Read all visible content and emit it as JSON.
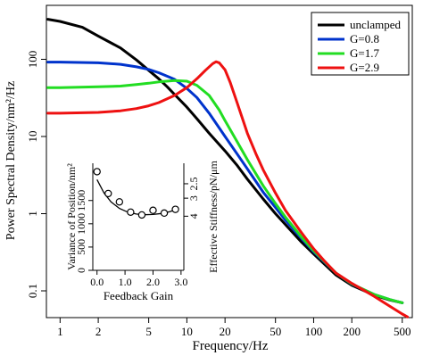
{
  "chart_data": [
    {
      "type": "line",
      "xlabel": "Frequency/Hz",
      "ylabel": "Power Spectral Density/nm²/Hz",
      "xscale": "log",
      "yscale": "log",
      "xlim": [
        0.78,
        600
      ],
      "ylim": [
        0.045,
        500
      ],
      "x_ticks": [
        1,
        2,
        5,
        10,
        20,
        50,
        100,
        200,
        500
      ],
      "x_tick_labels": [
        "1",
        "2",
        "5",
        "10",
        "20",
        "50",
        "100",
        "200",
        "500"
      ],
      "y_ticks": [
        0.1,
        1,
        10,
        100
      ],
      "y_tick_labels": [
        "0.1",
        "1",
        "10",
        "100"
      ],
      "legend_position": "top-right",
      "series": [
        {
          "name": "unclamped",
          "color": "#000000",
          "points": [
            [
              0.8,
              330
            ],
            [
              1,
              310
            ],
            [
              1.5,
              260
            ],
            [
              2,
              200
            ],
            [
              3,
              140
            ],
            [
              4,
              98
            ],
            [
              5,
              72
            ],
            [
              6,
              56
            ],
            [
              7,
              44
            ],
            [
              8,
              35
            ],
            [
              10,
              24
            ],
            [
              12,
              17
            ],
            [
              15,
              11
            ],
            [
              20,
              6.5
            ],
            [
              25,
              4.2
            ],
            [
              30,
              2.8
            ],
            [
              40,
              1.55
            ],
            [
              50,
              1.0
            ],
            [
              60,
              0.72
            ],
            [
              80,
              0.43
            ],
            [
              100,
              0.3
            ],
            [
              150,
              0.16
            ],
            [
              200,
              0.118
            ],
            [
              300,
              0.088
            ],
            [
              400,
              0.076
            ],
            [
              500,
              0.07
            ]
          ]
        },
        {
          "name": "G=0.8",
          "color": "#0033cc",
          "points": [
            [
              0.8,
              92
            ],
            [
              1,
              92
            ],
            [
              2,
              90
            ],
            [
              3,
              86
            ],
            [
              4,
              80
            ],
            [
              5,
              74
            ],
            [
              6,
              67
            ],
            [
              8,
              55
            ],
            [
              10,
              42
            ],
            [
              12,
              32
            ],
            [
              15,
              20
            ],
            [
              20,
              10
            ],
            [
              25,
              5.9
            ],
            [
              30,
              3.8
            ],
            [
              40,
              1.9
            ],
            [
              50,
              1.2
            ],
            [
              60,
              0.82
            ],
            [
              80,
              0.48
            ],
            [
              100,
              0.32
            ],
            [
              150,
              0.17
            ],
            [
              200,
              0.122
            ],
            [
              300,
              0.09
            ],
            [
              400,
              0.077
            ],
            [
              500,
              0.07
            ]
          ]
        },
        {
          "name": "G=1.7",
          "color": "#22dd22",
          "points": [
            [
              0.8,
              43
            ],
            [
              1,
              43
            ],
            [
              2,
              44
            ],
            [
              3,
              45
            ],
            [
              4,
              47
            ],
            [
              5,
              49
            ],
            [
              6,
              51
            ],
            [
              8,
              53
            ],
            [
              10,
              52
            ],
            [
              12,
              46
            ],
            [
              15,
              34
            ],
            [
              18,
              22
            ],
            [
              20,
              16
            ],
            [
              25,
              8.5
            ],
            [
              30,
              5
            ],
            [
              40,
              2.3
            ],
            [
              50,
              1.35
            ],
            [
              60,
              0.9
            ],
            [
              80,
              0.5
            ],
            [
              100,
              0.33
            ],
            [
              150,
              0.17
            ],
            [
              200,
              0.123
            ],
            [
              300,
              0.09
            ],
            [
              400,
              0.077
            ],
            [
              500,
              0.07
            ]
          ]
        },
        {
          "name": "G=2.9",
          "color": "#ee1111",
          "points": [
            [
              0.8,
              20
            ],
            [
              1,
              20
            ],
            [
              2,
              20.5
            ],
            [
              3,
              21.5
            ],
            [
              4,
              23
            ],
            [
              5,
              25
            ],
            [
              6,
              27.5
            ],
            [
              8,
              34
            ],
            [
              10,
              43
            ],
            [
              12,
              56
            ],
            [
              14,
              72
            ],
            [
              16,
              88
            ],
            [
              17,
              93
            ],
            [
              18,
              90
            ],
            [
              20,
              73
            ],
            [
              22,
              50
            ],
            [
              25,
              27
            ],
            [
              28,
              15.5
            ],
            [
              30,
              11
            ],
            [
              35,
              6
            ],
            [
              40,
              3.7
            ],
            [
              50,
              1.85
            ],
            [
              60,
              1.1
            ],
            [
              80,
              0.57
            ],
            [
              100,
              0.35
            ],
            [
              120,
              0.25
            ],
            [
              150,
              0.17
            ],
            [
              200,
              0.125
            ],
            [
              250,
              0.101
            ],
            [
              300,
              0.085
            ],
            [
              400,
              0.063
            ],
            [
              500,
              0.05
            ],
            [
              550,
              0.046
            ]
          ]
        }
      ]
    },
    {
      "type": "scatter",
      "xlabel": "Feedback Gain",
      "ylabel": "Variance of Position/nm²",
      "y2label": "Effective Stiffness/pN/μm",
      "xlim": [
        -0.15,
        3.1
      ],
      "ylim": [
        0,
        2300
      ],
      "x_ticks": [
        0,
        1,
        2,
        3
      ],
      "x_tick_labels": [
        "0.0",
        "1.0",
        "2.0",
        "3.0"
      ],
      "y_ticks": [
        0,
        500,
        1000,
        1500
      ],
      "y_tick_labels": [
        "0",
        "500",
        "1000",
        "1500"
      ],
      "y2_ticks": [
        4,
        3,
        2.5
      ],
      "y2_tick_labels": [
        "4",
        "3",
        "2.5"
      ],
      "markers": {
        "x": [
          0,
          0.4,
          0.8,
          1.2,
          1.6,
          2.0,
          2.4,
          2.8
        ],
        "y": [
          2120,
          1650,
          1470,
          1250,
          1190,
          1290,
          1230,
          1310
        ]
      },
      "fit": {
        "x": [
          0,
          0.25,
          0.5,
          0.8,
          1.1,
          1.4,
          1.7,
          2.0,
          2.3,
          2.6,
          2.9
        ],
        "y": [
          1950,
          1660,
          1470,
          1330,
          1250,
          1210,
          1195,
          1200,
          1220,
          1260,
          1320
        ]
      }
    }
  ]
}
